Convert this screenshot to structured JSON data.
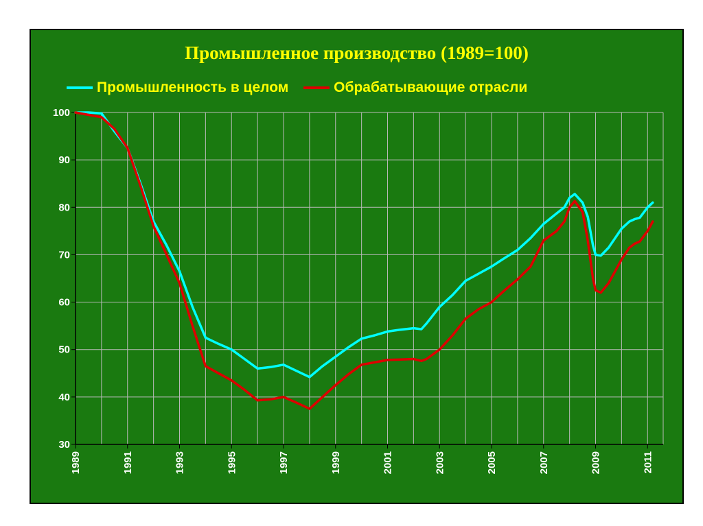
{
  "chart_data": {
    "type": "line",
    "title": "Промышленное производство (1989=100)",
    "xlabel": "",
    "ylabel": "",
    "xlim": [
      1989,
      2011.6
    ],
    "ylim": [
      30,
      100
    ],
    "x_ticks": [
      "1989",
      "1991",
      "1993",
      "1995",
      "1997",
      "1999",
      "2001",
      "2003",
      "2005",
      "2007",
      "2009",
      "2011"
    ],
    "y_ticks": [
      "100",
      "90",
      "80",
      "70",
      "60",
      "50",
      "40",
      "30"
    ],
    "grid": true,
    "legend_position": "top",
    "series": [
      {
        "name": "Промышленность в целом",
        "color": "#00ffff",
        "points": [
          [
            1989,
            100
          ],
          [
            1989.5,
            100
          ],
          [
            1990,
            99.8
          ],
          [
            1990.5,
            96
          ],
          [
            1991,
            92.5
          ],
          [
            1991.5,
            85
          ],
          [
            1992,
            77
          ],
          [
            1992.5,
            72
          ],
          [
            1993,
            66.5
          ],
          [
            1993.5,
            59
          ],
          [
            1994,
            52.5
          ],
          [
            1994.5,
            51.2
          ],
          [
            1995,
            50
          ],
          [
            1995.5,
            48
          ],
          [
            1996,
            46
          ],
          [
            1996.5,
            46.3
          ],
          [
            1997,
            46.8
          ],
          [
            1997.5,
            45.5
          ],
          [
            1998,
            44.2
          ],
          [
            1998.5,
            46.5
          ],
          [
            1999,
            48.5
          ],
          [
            1999.5,
            50.5
          ],
          [
            2000,
            52.3
          ],
          [
            2000.5,
            53
          ],
          [
            2001,
            53.8
          ],
          [
            2001.5,
            54.2
          ],
          [
            2002,
            54.5
          ],
          [
            2002.3,
            54.3
          ],
          [
            2002.5,
            55.5
          ],
          [
            2003,
            59
          ],
          [
            2003.5,
            61.5
          ],
          [
            2004,
            64.5
          ],
          [
            2004.5,
            66
          ],
          [
            2005,
            67.5
          ],
          [
            2005.5,
            69.3
          ],
          [
            2006,
            71
          ],
          [
            2006.5,
            73.5
          ],
          [
            2007,
            76.5
          ],
          [
            2007.5,
            78.7
          ],
          [
            2007.8,
            80
          ],
          [
            2008,
            82
          ],
          [
            2008.2,
            82.8
          ],
          [
            2008.5,
            81
          ],
          [
            2008.7,
            78
          ],
          [
            2008.9,
            72
          ],
          [
            2009,
            70
          ],
          [
            2009.2,
            69.8
          ],
          [
            2009.5,
            71.5
          ],
          [
            2010,
            75.5
          ],
          [
            2010.3,
            77
          ],
          [
            2010.5,
            77.5
          ],
          [
            2010.7,
            77.8
          ],
          [
            2011,
            80
          ],
          [
            2011.2,
            81
          ]
        ]
      },
      {
        "name": "Обрабатывающие отрасли",
        "color": "#dd0000",
        "points": [
          [
            1989,
            100
          ],
          [
            1989.5,
            99.5
          ],
          [
            1990,
            99
          ],
          [
            1990.5,
            96.5
          ],
          [
            1991,
            92.5
          ],
          [
            1991.5,
            84.5
          ],
          [
            1992,
            76
          ],
          [
            1992.5,
            70
          ],
          [
            1993,
            64
          ],
          [
            1993.5,
            55
          ],
          [
            1994,
            46.5
          ],
          [
            1994.5,
            45
          ],
          [
            1995,
            43.5
          ],
          [
            1995.5,
            41.5
          ],
          [
            1996,
            39.3
          ],
          [
            1996.5,
            39.5
          ],
          [
            1997,
            40
          ],
          [
            1997.5,
            38.8
          ],
          [
            1998,
            37.5
          ],
          [
            1998.5,
            40
          ],
          [
            1999,
            42.5
          ],
          [
            1999.5,
            44.8
          ],
          [
            2000,
            46.8
          ],
          [
            2000.5,
            47.3
          ],
          [
            2001,
            47.8
          ],
          [
            2001.5,
            47.9
          ],
          [
            2002,
            48
          ],
          [
            2002.3,
            47.6
          ],
          [
            2002.5,
            48
          ],
          [
            2003,
            50
          ],
          [
            2003.5,
            53
          ],
          [
            2004,
            56.5
          ],
          [
            2004.5,
            58.5
          ],
          [
            2005,
            60
          ],
          [
            2005.5,
            62.5
          ],
          [
            2006,
            64.8
          ],
          [
            2006.5,
            67.5
          ],
          [
            2007,
            73
          ],
          [
            2007.5,
            75
          ],
          [
            2007.8,
            77
          ],
          [
            2008,
            80
          ],
          [
            2008.2,
            81.3
          ],
          [
            2008.5,
            79
          ],
          [
            2008.7,
            73
          ],
          [
            2008.9,
            65
          ],
          [
            2009,
            62.5
          ],
          [
            2009.2,
            62
          ],
          [
            2009.5,
            64
          ],
          [
            2010,
            69
          ],
          [
            2010.3,
            71.5
          ],
          [
            2010.5,
            72.3
          ],
          [
            2010.7,
            72.8
          ],
          [
            2011,
            75
          ],
          [
            2011.2,
            77
          ]
        ]
      }
    ]
  }
}
